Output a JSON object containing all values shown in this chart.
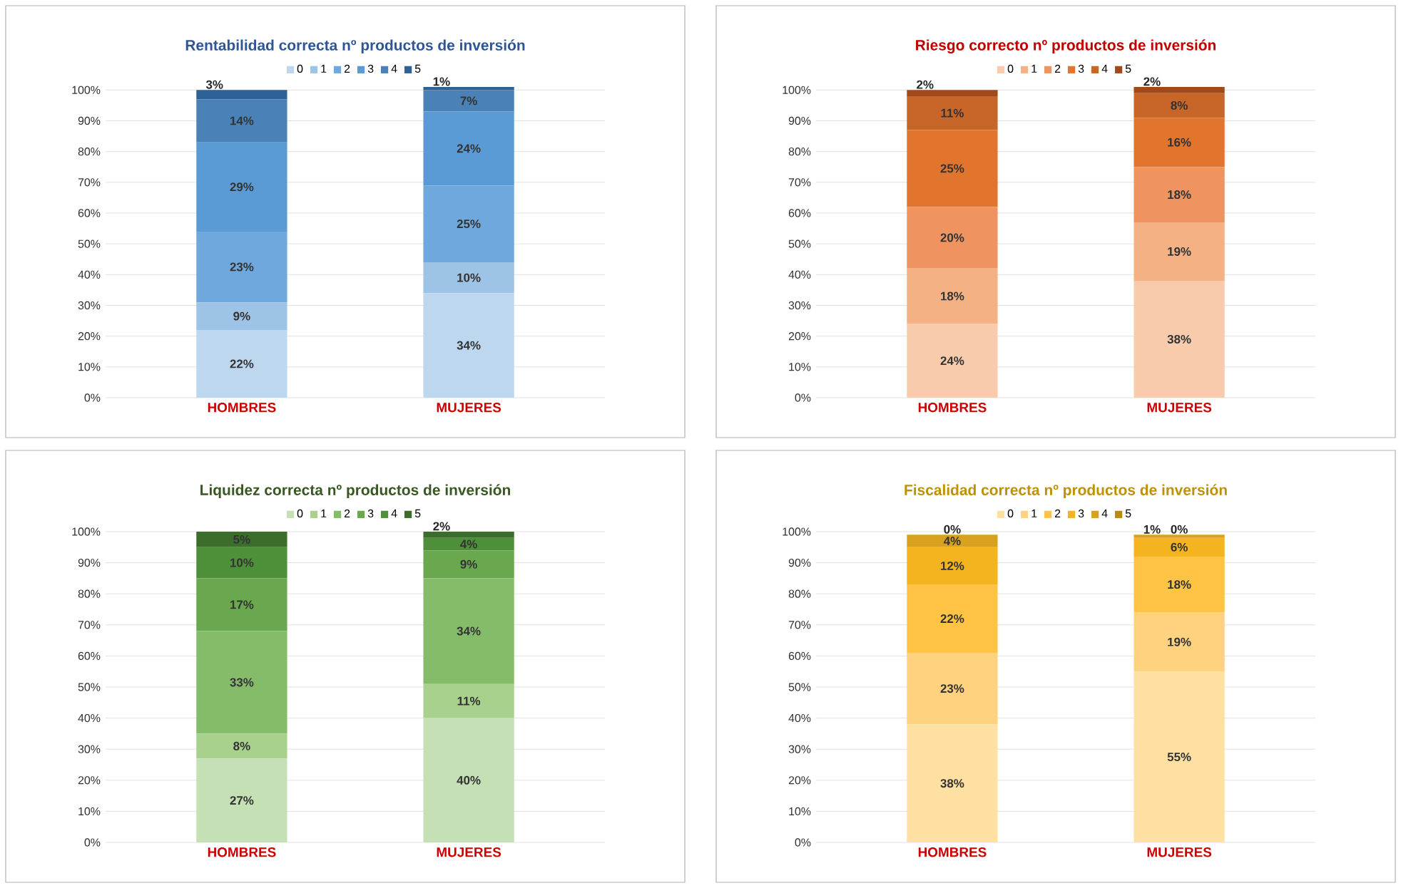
{
  "chart_data": [
    {
      "type": "bar",
      "stacked": true,
      "title": "Rentabilidad correcta nº productos de inversión",
      "categories": [
        "HOMBRES",
        "MUJERES"
      ],
      "ylim": [
        0,
        101
      ],
      "yticks": [
        {
          "value": 0,
          "label": "0%"
        },
        {
          "value": 10,
          "label": "10%"
        },
        {
          "value": 20,
          "label": "20%"
        },
        {
          "value": 30,
          "label": "30%"
        },
        {
          "value": 40,
          "label": "40%"
        },
        {
          "value": 50,
          "label": "50%"
        },
        {
          "value": 60,
          "label": "60%"
        },
        {
          "value": 70,
          "label": "70%"
        },
        {
          "value": 80,
          "label": "80%"
        },
        {
          "value": 90,
          "label": "90%"
        },
        {
          "value": 100,
          "label": "100%"
        }
      ],
      "grid": "y",
      "legend": "top",
      "series": [
        {
          "name": "0",
          "color": "#bdd7ee",
          "values": [
            22,
            34
          ],
          "value_labels": [
            "22%",
            "34%"
          ]
        },
        {
          "name": "1",
          "color": "#9dc3e6",
          "values": [
            9,
            10
          ],
          "value_labels": [
            "9%",
            "10%"
          ]
        },
        {
          "name": "2",
          "color": "#6fa8dc",
          "values": [
            23,
            25
          ],
          "value_labels": [
            "23%",
            "25%"
          ]
        },
        {
          "name": "3",
          "color": "#5b9bd5",
          "values": [
            29,
            24
          ],
          "value_labels": [
            "29%",
            "24%"
          ]
        },
        {
          "name": "4",
          "color": "#4a82b8",
          "values": [
            14,
            7
          ],
          "value_labels": [
            "14%",
            "7%"
          ]
        },
        {
          "name": "5",
          "color": "#2e6195",
          "values": [
            3,
            1
          ],
          "value_labels": [
            "3%",
            "1%"
          ]
        }
      ]
    },
    {
      "type": "bar",
      "stacked": true,
      "title": "Riesgo correcto nº productos de inversión",
      "categories": [
        "HOMBRES",
        "MUJERES"
      ],
      "ylim": [
        0,
        101
      ],
      "yticks": [
        {
          "value": 0,
          "label": "0%"
        },
        {
          "value": 10,
          "label": "10%"
        },
        {
          "value": 20,
          "label": "20%"
        },
        {
          "value": 30,
          "label": "30%"
        },
        {
          "value": 40,
          "label": "40%"
        },
        {
          "value": 50,
          "label": "50%"
        },
        {
          "value": 60,
          "label": "60%"
        },
        {
          "value": 70,
          "label": "70%"
        },
        {
          "value": 80,
          "label": "80%"
        },
        {
          "value": 90,
          "label": "90%"
        },
        {
          "value": 100,
          "label": "100%"
        }
      ],
      "grid": "y",
      "legend": "top",
      "series": [
        {
          "name": "0",
          "color": "#f8cbad",
          "values": [
            24,
            38
          ],
          "value_labels": [
            "24%",
            "38%"
          ]
        },
        {
          "name": "1",
          "color": "#f4b183",
          "values": [
            18,
            19
          ],
          "value_labels": [
            "18%",
            "19%"
          ]
        },
        {
          "name": "2",
          "color": "#ef9460",
          "values": [
            20,
            18
          ],
          "value_labels": [
            "20%",
            "18%"
          ]
        },
        {
          "name": "3",
          "color": "#e2752d",
          "values": [
            25,
            16
          ],
          "value_labels": [
            "25%",
            "16%"
          ]
        },
        {
          "name": "4",
          "color": "#c8662a",
          "values": [
            11,
            8
          ],
          "value_labels": [
            "11%",
            "8%"
          ]
        },
        {
          "name": "5",
          "color": "#a04a1c",
          "values": [
            2,
            2
          ],
          "value_labels": [
            "2%",
            "2%"
          ]
        }
      ]
    },
    {
      "type": "bar",
      "stacked": true,
      "title": "Liquidez correcta nº productos de inversión",
      "categories": [
        "HOMBRES",
        "MUJERES"
      ],
      "ylim": [
        0,
        100
      ],
      "yticks": [
        {
          "value": 0,
          "label": "0%"
        },
        {
          "value": 10,
          "label": "10%"
        },
        {
          "value": 20,
          "label": "20%"
        },
        {
          "value": 30,
          "label": "30%"
        },
        {
          "value": 40,
          "label": "40%"
        },
        {
          "value": 50,
          "label": "50%"
        },
        {
          "value": 60,
          "label": "60%"
        },
        {
          "value": 70,
          "label": "70%"
        },
        {
          "value": 80,
          "label": "80%"
        },
        {
          "value": 90,
          "label": "90%"
        },
        {
          "value": 100,
          "label": "100%"
        }
      ],
      "grid": "y",
      "legend": "top",
      "series": [
        {
          "name": "0",
          "color": "#c5e0b4",
          "values": [
            27,
            40
          ],
          "value_labels": [
            "27%",
            "40%"
          ]
        },
        {
          "name": "1",
          "color": "#a9d18e",
          "values": [
            8,
            11
          ],
          "value_labels": [
            "8%",
            "11%"
          ]
        },
        {
          "name": "2",
          "color": "#85bc6a",
          "values": [
            33,
            34
          ],
          "value_labels": [
            "33%",
            "34%"
          ]
        },
        {
          "name": "3",
          "color": "#6aa84f",
          "values": [
            17,
            9
          ],
          "value_labels": [
            "17%",
            "9%"
          ]
        },
        {
          "name": "4",
          "color": "#4e8f3a",
          "values": [
            10,
            4
          ],
          "value_labels": [
            "10%",
            "4%"
          ]
        },
        {
          "name": "5",
          "color": "#3a6e2a",
          "values": [
            5,
            2
          ],
          "value_labels": [
            "5%",
            "2%"
          ]
        }
      ]
    },
    {
      "type": "bar",
      "stacked": true,
      "title": "Fiscalidad correcta nº productos de inversión",
      "categories": [
        "HOMBRES",
        "MUJERES"
      ],
      "ylim": [
        0,
        100
      ],
      "yticks": [
        {
          "value": 0,
          "label": "0%"
        },
        {
          "value": 10,
          "label": "10%"
        },
        {
          "value": 20,
          "label": "20%"
        },
        {
          "value": 30,
          "label": "30%"
        },
        {
          "value": 40,
          "label": "40%"
        },
        {
          "value": 50,
          "label": "50%"
        },
        {
          "value": 60,
          "label": "60%"
        },
        {
          "value": 70,
          "label": "70%"
        },
        {
          "value": 80,
          "label": "80%"
        },
        {
          "value": 90,
          "label": "90%"
        },
        {
          "value": 100,
          "label": "100%"
        }
      ],
      "grid": "y",
      "legend": "top",
      "series": [
        {
          "name": "0",
          "color": "#ffe0a3",
          "values": [
            38,
            55
          ],
          "value_labels": [
            "38%",
            "55%"
          ]
        },
        {
          "name": "1",
          "color": "#ffd27f",
          "values": [
            23,
            19
          ],
          "value_labels": [
            "23%",
            "19%"
          ]
        },
        {
          "name": "2",
          "color": "#ffc445",
          "values": [
            22,
            18
          ],
          "value_labels": [
            "22%",
            "18%"
          ]
        },
        {
          "name": "3",
          "color": "#f4b420",
          "values": [
            12,
            6
          ],
          "value_labels": [
            "12%",
            "6%"
          ]
        },
        {
          "name": "4",
          "color": "#d9a21e",
          "values": [
            4,
            1
          ],
          "value_labels": [
            "4%",
            "1%"
          ]
        },
        {
          "name": "5",
          "color": "#b88a10",
          "values": [
            0,
            0
          ],
          "value_labels": [
            "0%",
            "0%"
          ]
        }
      ]
    }
  ]
}
